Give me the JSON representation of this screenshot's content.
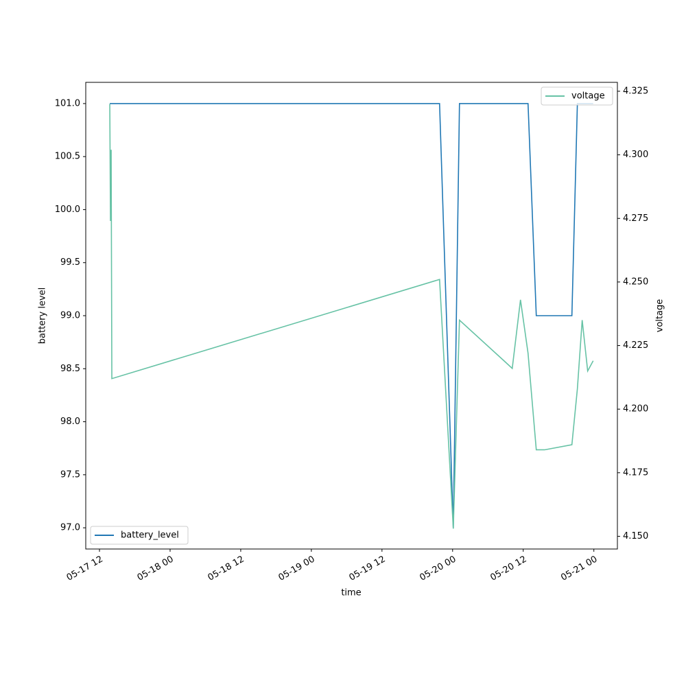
{
  "chart_data": {
    "type": "line",
    "x_label": "time",
    "y_label": "battery level",
    "y2_label": "voltage",
    "xlim": [
      "05-17 09:40",
      "05-21 04:00"
    ],
    "xticks": [
      "05-17 12",
      "05-18 00",
      "05-18 12",
      "05-19 00",
      "05-19 12",
      "05-20 00",
      "05-20 12",
      "05-21 00"
    ],
    "ylim": [
      96.8,
      101.2
    ],
    "yticks": [
      {
        "value": 97,
        "label": "97.0"
      },
      {
        "value": 97.5,
        "label": "97.5"
      },
      {
        "value": 98,
        "label": "98.0"
      },
      {
        "value": 98.5,
        "label": "98.5"
      },
      {
        "value": 99,
        "label": "99.0"
      },
      {
        "value": 99.5,
        "label": "99.5"
      },
      {
        "value": 100,
        "label": "100.0"
      },
      {
        "value": 100.5,
        "label": "100.5"
      },
      {
        "value": 101,
        "label": "101.0"
      }
    ],
    "y2lim": [
      4.145,
      4.3285
    ],
    "y2ticks": [
      {
        "value": 4.15,
        "label": "4.150"
      },
      {
        "value": 4.175,
        "label": "4.175"
      },
      {
        "value": 4.2,
        "label": "4.200"
      },
      {
        "value": 4.225,
        "label": "4.225"
      },
      {
        "value": 4.25,
        "label": "4.250"
      },
      {
        "value": 4.275,
        "label": "4.275"
      },
      {
        "value": 4.3,
        "label": "4.300"
      },
      {
        "value": 4.325,
        "label": "4.325"
      }
    ],
    "series": [
      {
        "name": "battery_level",
        "color": "#1f77b4",
        "legend": "lower left",
        "x": [
          "05-17 13:45",
          "05-19 21:47",
          "05-20 00:07",
          "05-20 01:10",
          "05-20 12:49",
          "05-20 14:13",
          "05-20 20:16",
          "05-20 21:12",
          "05-20 23:53"
        ],
        "values": [
          101,
          101,
          97,
          101,
          101,
          99,
          99,
          101,
          101
        ]
      },
      {
        "name": "voltage",
        "color": "#66c2a5",
        "axis": "y2",
        "legend": "upper right",
        "x": [
          "05-17 13:45",
          "05-17 13:52",
          "05-17 13:59",
          "05-17 14:06",
          "05-19 21:47",
          "05-20 00:07",
          "05-20 01:10",
          "05-20 08:44",
          "05-20 10:08",
          "05-20 11:32",
          "05-20 12:49",
          "05-20 14:13",
          "05-20 15:37",
          "05-20 20:16",
          "05-20 21:12",
          "05-20 22:01",
          "05-20 22:57",
          "05-20 23:53"
        ],
        "values": [
          4.32,
          4.274,
          4.302,
          4.212,
          4.251,
          4.153,
          4.235,
          4.219,
          4.216,
          4.243,
          4.222,
          4.184,
          4.184,
          4.186,
          4.208,
          4.235,
          4.215,
          4.219
        ]
      }
    ]
  }
}
